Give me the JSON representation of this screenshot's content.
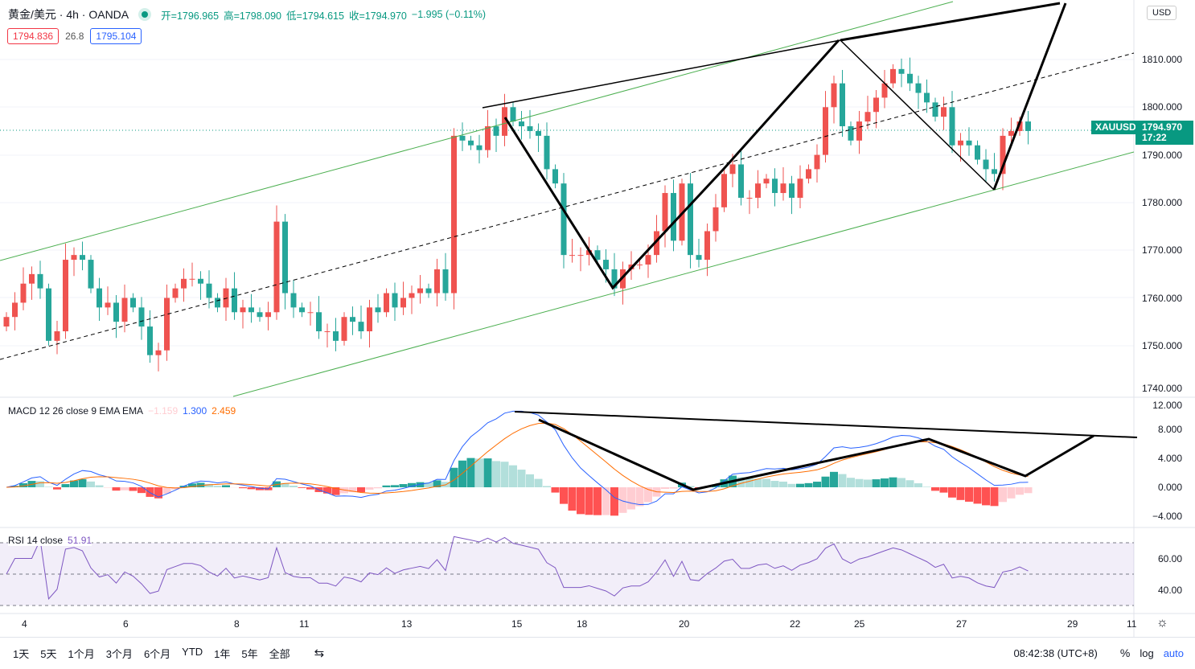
{
  "header": {
    "title": "黄金/美元 · 4h · OANDA",
    "o": "开=1796.965",
    "h": "高=1798.090",
    "l": "低=1794.615",
    "c": "收=1794.970",
    "chg": "−1.995 (−0.11%)",
    "bid": "1794.836",
    "spread": "26.8",
    "ask": "1795.104"
  },
  "price_axis": {
    "currency": "USD",
    "ticks": [
      "1810.000",
      "1800.000",
      "1790.000",
      "1780.000",
      "1770.000",
      "1760.000",
      "1750.000",
      "1740.000"
    ],
    "symbol": "XAUUSD",
    "last": "1794.970",
    "countdown": "17:22"
  },
  "macd": {
    "label": "MACD 12 26 close 9 EMA EMA",
    "hist": "−1.159",
    "macd": "1.300",
    "signal": "2.459",
    "ticks": [
      "12.000",
      "8.000",
      "4.000",
      "0.000",
      "−4.000"
    ]
  },
  "rsi": {
    "label": "RSI 14 close",
    "value": "51.91",
    "ticks": [
      "60.00",
      "40.00"
    ]
  },
  "time_axis": [
    "4",
    "6",
    "8",
    "11",
    "13",
    "15",
    "18",
    "20",
    "22",
    "25",
    "27",
    "29",
    "11"
  ],
  "toolbar": {
    "ranges": [
      "1天",
      "5天",
      "1个月",
      "3个月",
      "6个月",
      "YTD",
      "1年",
      "5年",
      "全部"
    ],
    "clock": "08:42:38 (UTC+8)",
    "pct": "%",
    "log": "log",
    "auto": "auto"
  },
  "colors": {
    "up": "#ef5350",
    "down": "#26a69a",
    "macd": "#2962ff",
    "signal": "#ff6d00"
  },
  "chart_data": {
    "type": "candlestick",
    "ylim": [
      1740,
      1815
    ],
    "closes": [
      1756,
      1759,
      1763,
      1765,
      1762,
      1751,
      1753,
      1768,
      1769,
      1768,
      1762,
      1758,
      1759,
      1755,
      1760,
      1758,
      1754,
      1748,
      1749,
      1760,
      1762,
      1764,
      1764,
      1763,
      1760,
      1758,
      1762,
      1757,
      1758,
      1757,
      1756,
      1757,
      1776,
      1761,
      1758,
      1757,
      1757,
      1753,
      1753,
      1751,
      1756,
      1755,
      1753,
      1758,
      1757,
      1761,
      1758,
      1760,
      1761,
      1762,
      1761,
      1766,
      1761,
      1794,
      1793,
      1792,
      1791,
      1796,
      1794,
      1800,
      1797,
      1796,
      1795,
      1794,
      1787,
      1784,
      1769,
      1769,
      1769,
      1770,
      1768,
      1766,
      1762,
      1766,
      1767,
      1767,
      1769,
      1774,
      1782,
      1772,
      1784,
      1769,
      1768,
      1774,
      1779,
      1786,
      1788,
      1781,
      1781,
      1784,
      1785,
      1782,
      1784,
      1781,
      1785,
      1787,
      1790,
      1800,
      1805,
      1796,
      1793,
      1797,
      1799,
      1802,
      1805,
      1808,
      1807,
      1805,
      1803,
      1801,
      1798,
      1800,
      1792,
      1793,
      1792,
      1789,
      1787,
      1786,
      1794,
      1795,
      1797,
      1795
    ]
  }
}
